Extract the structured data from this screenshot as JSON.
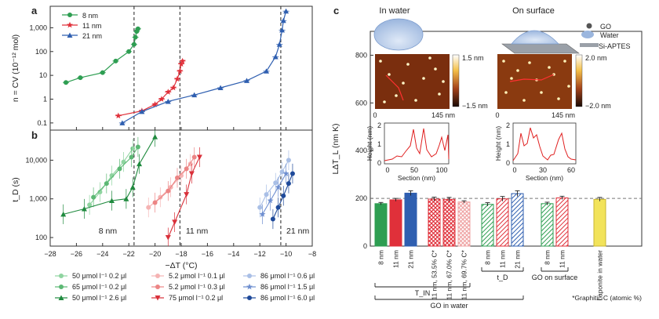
{
  "panels": {
    "a": "a",
    "b": "b",
    "c": "c"
  },
  "colors": {
    "green": "#2e9e52",
    "red": "#e0303a",
    "blue": "#2f5fb0",
    "yellow": "#f2e35a",
    "grey_ref": "#888888"
  },
  "chart_data": [
    {
      "panel": "a",
      "type": "scatter",
      "ylabel": "n = CV (10⁻¹² mol)",
      "yscale": "log",
      "ylim": [
        0.05,
        8000
      ],
      "xlim": [
        -28,
        -8
      ],
      "yticks": [
        "0.1",
        "1",
        "10",
        "100",
        "1,000"
      ],
      "legend_position": "top-left",
      "series": [
        {
          "name": "8 nm",
          "color": "#2e9e52",
          "marker": "circle",
          "x": [
            -26.8,
            -25.7,
            -24.0,
            -23.0,
            -22.0,
            -21.6,
            -21.5,
            -21.4,
            -21.3
          ],
          "y": [
            5,
            8,
            13,
            40,
            100,
            200,
            400,
            700,
            900
          ]
        },
        {
          "name": "11 nm",
          "color": "#e0303a",
          "marker": "star",
          "x": [
            -22.8,
            -21.0,
            -20.0,
            -19.5,
            -19.0,
            -18.6,
            -18.3,
            -18.1,
            -18.0,
            -17.9
          ],
          "y": [
            0.2,
            0.32,
            0.6,
            1.0,
            2.0,
            3.0,
            7,
            15,
            30,
            40
          ]
        },
        {
          "name": "21 nm",
          "color": "#2f5fb0",
          "marker": "triangle",
          "x": [
            -22.5,
            -21.0,
            -19.0,
            -17.0,
            -15.0,
            -13.0,
            -11.5,
            -10.8,
            -10.5,
            -10.3,
            -10.2,
            -10.0
          ],
          "y": [
            0.1,
            0.3,
            0.8,
            1.5,
            3,
            6,
            15,
            60,
            200,
            800,
            2000,
            5000
          ]
        }
      ]
    },
    {
      "panel": "b",
      "type": "scatter",
      "ylabel": "t_D (s)",
      "xlabel": "−ΔT (°C)",
      "yscale": "log",
      "ylim": [
        60,
        60000
      ],
      "xlim": [
        -28,
        -8
      ],
      "xticks": [
        -28,
        -26,
        -24,
        -22,
        -20,
        -18,
        -16,
        -14,
        -12,
        -10,
        -8
      ],
      "yticks": [
        "100",
        "1,000",
        "10,000"
      ],
      "annotations": [
        "8 nm",
        "11 nm",
        "21 nm"
      ],
      "series": [
        {
          "name": "50 μmol l⁻¹ 0.2 μl",
          "color": "#8fd4a0",
          "marker": "circle",
          "x": [
            -25.0,
            -24.2,
            -23.3,
            -22.4,
            -21.7
          ],
          "y": [
            700,
            1500,
            4000,
            9000,
            20000
          ]
        },
        {
          "name": "65 μmol l⁻¹ 0.2 μl",
          "color": "#5cb874",
          "marker": "circle",
          "x": [
            -24.7,
            -23.7,
            -22.7,
            -21.8,
            -21.3
          ],
          "y": [
            1100,
            2500,
            6000,
            12000,
            22000
          ]
        },
        {
          "name": "50 μmol l⁻¹ 2.6 μl",
          "color": "#1f8a3e",
          "marker": "triangle",
          "x": [
            -27.0,
            -25.4,
            -23.3,
            -22.2,
            -21.7,
            -21.2,
            -20.0
          ],
          "y": [
            400,
            550,
            900,
            1000,
            2000,
            8000,
            40000
          ]
        },
        {
          "name": "5.2 μmol l⁻¹ 0.1 μl",
          "color": "#f5b3b3",
          "marker": "circle",
          "x": [
            -20.5,
            -19.6,
            -18.8,
            -18.0,
            -17.3
          ],
          "y": [
            600,
            1100,
            2000,
            4000,
            8000
          ]
        },
        {
          "name": "5.2 μmol l⁻¹ 0.3 μl",
          "color": "#ec8585",
          "marker": "circle",
          "x": [
            -20.0,
            -19.0,
            -18.3,
            -17.6,
            -17.0
          ],
          "y": [
            800,
            1600,
            3500,
            6000,
            12000
          ]
        },
        {
          "name": "75 μmol l⁻¹ 0.2 μl",
          "color": "#d9303a",
          "marker": "triangle_down",
          "x": [
            -19.0,
            -18.5,
            -17.6,
            -17.2,
            -16.6
          ],
          "y": [
            100,
            250,
            1300,
            4500,
            12000
          ]
        },
        {
          "name": "86 μmol l⁻¹ 0.6 μl",
          "color": "#a9bfe6",
          "marker": "circle",
          "x": [
            -12.0,
            -11.5,
            -10.8,
            -10.3,
            -9.8
          ],
          "y": [
            600,
            1300,
            2600,
            5000,
            10000
          ]
        },
        {
          "name": "86 μmol l⁻¹ 1.5 μl",
          "color": "#6f8fd0",
          "marker": "star",
          "x": [
            -11.8,
            -11.2,
            -10.6,
            -10.0
          ],
          "y": [
            400,
            900,
            2000,
            4500
          ]
        },
        {
          "name": "86 μmol l⁻¹ 6.0 μl",
          "color": "#1f4a9a",
          "marker": "circle",
          "x": [
            -11.0,
            -10.6,
            -10.2,
            -9.8,
            -9.5
          ],
          "y": [
            300,
            600,
            1200,
            2500,
            4500
          ]
        }
      ]
    },
    {
      "panel": "c",
      "type": "bar",
      "ylabel": "LΔT_L (nm K)",
      "ylim": [
        0,
        900
      ],
      "yticks": [
        0,
        200,
        400,
        600,
        800
      ],
      "reference_line": 200,
      "categories": [
        "8 nm",
        "11 nm",
        "21 nm",
        "11 nm, 53.5% C*",
        "11 nm, 67.0% C*",
        "11 nm, 69.7% C*",
        "8 nm",
        "11 nm",
        "21 nm",
        "8 nm",
        "11 nm",
        "Laponite in water"
      ],
      "values": [
        178,
        194,
        222,
        197,
        196,
        185,
        175,
        198,
        220,
        178,
        202,
        196
      ],
      "errors": [
        5,
        6,
        10,
        8,
        8,
        5,
        7,
        10,
        12,
        6,
        7,
        8
      ],
      "bar_colors": [
        "#2e9e52",
        "#e0303a",
        "#2f5fb0",
        "#e0303a",
        "#e0303a",
        "#f0b8b8",
        "#2e9e52",
        "#e0303a",
        "#2f5fb0",
        "#2e9e52",
        "#e0303a",
        "#f2e35a"
      ],
      "bar_styles": [
        "solid",
        "solid",
        "solid",
        "cross",
        "cross",
        "cross",
        "hatch",
        "hatch",
        "hatch",
        "hatch",
        "hatch",
        "solid"
      ],
      "groups": [
        {
          "label": "T_IN",
          "from": 0,
          "to": 5
        },
        {
          "label": "t_D",
          "from": 6,
          "to": 8
        },
        {
          "label": "GO on surface",
          "from": 9,
          "to": 10
        },
        {
          "label": "GO in water",
          "from": 0,
          "to": 8
        }
      ],
      "footnote": "*Graphitic C (atomic %)"
    }
  ],
  "insets": {
    "water_title": "In water",
    "surface_title": "On surface",
    "afm_scale_left": {
      "max": "1.5 nm",
      "min": "−1.5 nm",
      "x0": "0",
      "x1": "145 nm"
    },
    "afm_scale_right": {
      "max": "2.0 nm",
      "min": "−2.0 nm",
      "x0": "0",
      "x1": "145 nm"
    },
    "profile_ylabel": "Height (nm)",
    "profile_xlabel": "Section (nm)",
    "profile_left_xticks": [
      "0",
      "50",
      "100"
    ],
    "profile_right_xticks": [
      "0",
      "30",
      "60"
    ],
    "profile_yticks": [
      "0",
      "1",
      "2"
    ],
    "schematic_legend": [
      "GO",
      "Water",
      "Si-APTES"
    ]
  }
}
